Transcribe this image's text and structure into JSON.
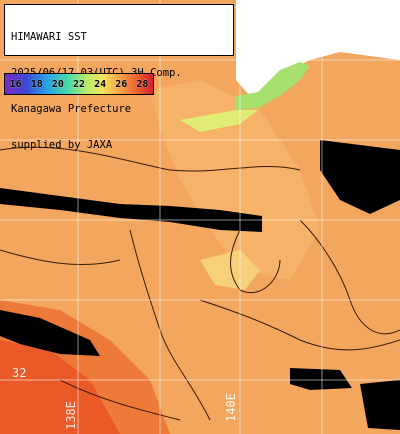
{
  "header": {
    "lines": [
      "HIMAWARI SST",
      "2025/06/17 03(UTC) 3H Comp.",
      "Kanagawa Prefecture",
      "supplied by JAXA"
    ]
  },
  "legend": {
    "values": [
      "16",
      "18",
      "20",
      "22",
      "24",
      "26",
      "28"
    ]
  },
  "map_labels": {
    "lon_138": "138E",
    "lon_140": "140E",
    "temp_tag": "32"
  },
  "colors": {
    "sea_warm": "#f2a460",
    "sea_hot": "#ee6a2c",
    "sea_cool": "#f6c86e",
    "land": "#ffffff",
    "cloud": "#000000"
  }
}
